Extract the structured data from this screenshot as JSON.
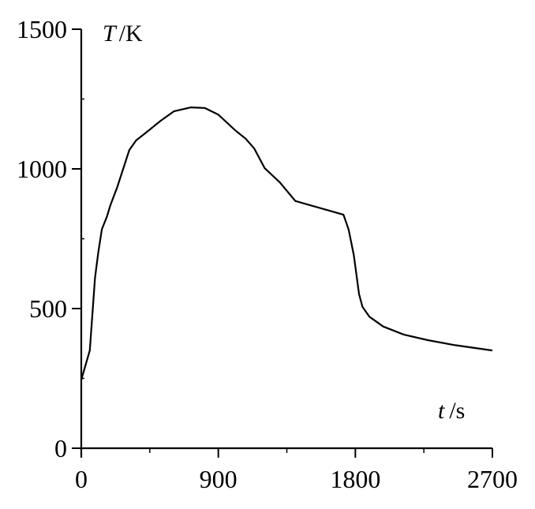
{
  "chart_data": {
    "type": "line",
    "title": "",
    "xlabel": {
      "var": "t",
      "unit": "/s"
    },
    "ylabel": {
      "var": "T",
      "unit": "/K"
    },
    "xlim": [
      0,
      2700
    ],
    "ylim": [
      0,
      1500
    ],
    "x_ticks": [
      0,
      900,
      1800,
      2700
    ],
    "x_tick_labels": [
      "0",
      "900",
      "1800",
      "2700"
    ],
    "y_ticks": [
      0,
      500,
      1000,
      1500
    ],
    "y_tick_labels": [
      "0",
      "500",
      "1000",
      "1500"
    ],
    "grid": false,
    "line_color": "#000000",
    "series": [
      {
        "x": [
          0,
          22,
          56,
          90,
          112,
          135,
          169,
          191,
          236,
          315,
          360,
          428,
          518,
          608,
          720,
          810,
          900,
          1013,
          1080,
          1136,
          1204,
          1305,
          1406,
          1722,
          1756,
          1790,
          1824,
          1847,
          1892,
          1982,
          2117,
          2275,
          2455,
          2700
        ],
        "y": [
          245,
          286,
          350,
          610,
          702,
          784,
          830,
          870,
          934,
          1067,
          1102,
          1131,
          1171,
          1206,
          1220,
          1218,
          1194,
          1137,
          1108,
          1073,
          1003,
          951,
          885,
          836,
          783,
          691,
          552,
          506,
          471,
          436,
          407,
          387,
          369,
          350
        ]
      }
    ]
  }
}
